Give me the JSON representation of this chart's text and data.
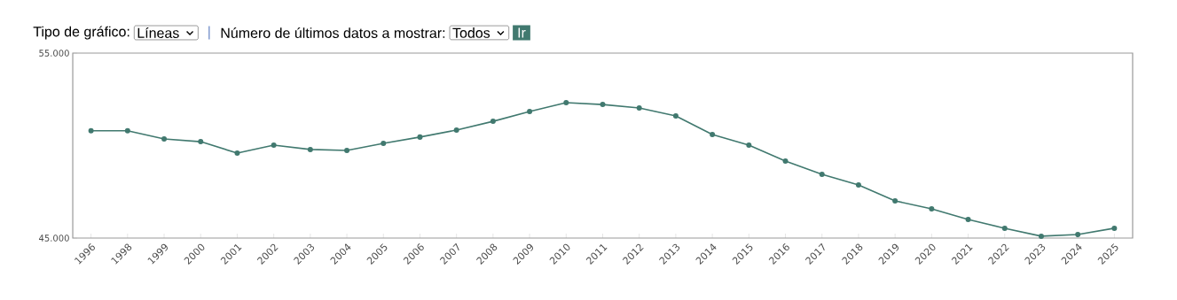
{
  "chart_data": {
    "type": "line",
    "categories": [
      "1996",
      "1998",
      "1999",
      "2000",
      "2001",
      "2002",
      "2003",
      "2004",
      "2005",
      "2006",
      "2007",
      "2008",
      "2009",
      "2010",
      "2011",
      "2012",
      "2013",
      "2014",
      "2015",
      "2016",
      "2017",
      "2018",
      "2019",
      "2020",
      "2021",
      "2022",
      "2023",
      "2024",
      "2025"
    ],
    "values": [
      50800,
      50800,
      50360,
      50210,
      49590,
      50020,
      49790,
      49740,
      50120,
      50460,
      50840,
      51310,
      51840,
      52320,
      52220,
      52030,
      51600,
      50600,
      50020,
      49160,
      48440,
      47870,
      47010,
      46580,
      46000,
      45530,
      45100,
      45190,
      45530
    ],
    "color": "#41796f",
    "marker": "circle",
    "line_style": "solid",
    "grid": false,
    "ylim": [
      45000,
      55000
    ],
    "yticks": [
      {
        "value": 45000,
        "label": "45.000"
      },
      {
        "value": 55000,
        "label": "55.000"
      }
    ],
    "annotations": [
      "Tipo de gráfico:",
      "Líneas",
      "|",
      "Número de últimos datos a mostrar:",
      "Todos",
      "Ir"
    ]
  }
}
